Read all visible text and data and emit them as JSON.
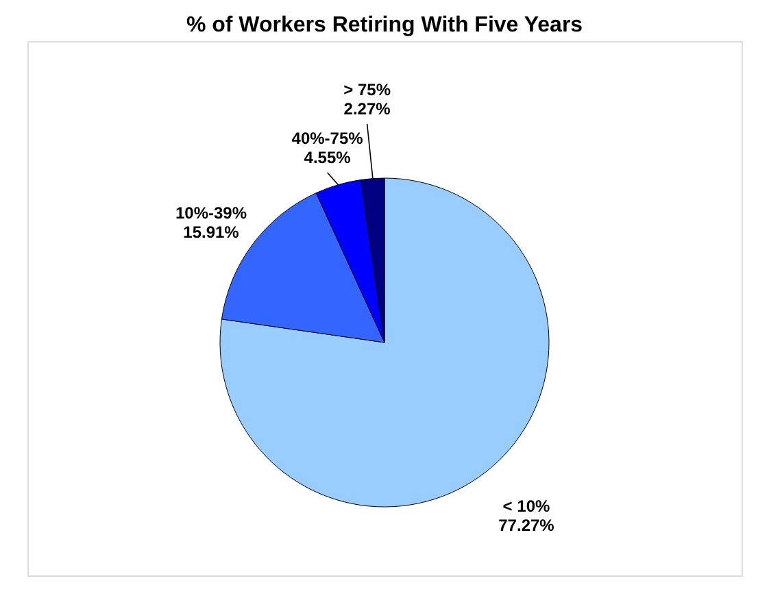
{
  "chart_data": {
    "type": "pie",
    "title": "% of Workers Retiring With Five Years",
    "categories": [
      "< 10%",
      "10%-39%",
      "40%-75%",
      "> 75%"
    ],
    "values": [
      77.27,
      15.91,
      4.55,
      2.27
    ],
    "value_labels": [
      "77.27%",
      "15.91%",
      "4.55%",
      "2.27%"
    ],
    "colors": [
      "#99ccff",
      "#3366ff",
      "#0000ff",
      "#000080"
    ],
    "legend": false
  }
}
